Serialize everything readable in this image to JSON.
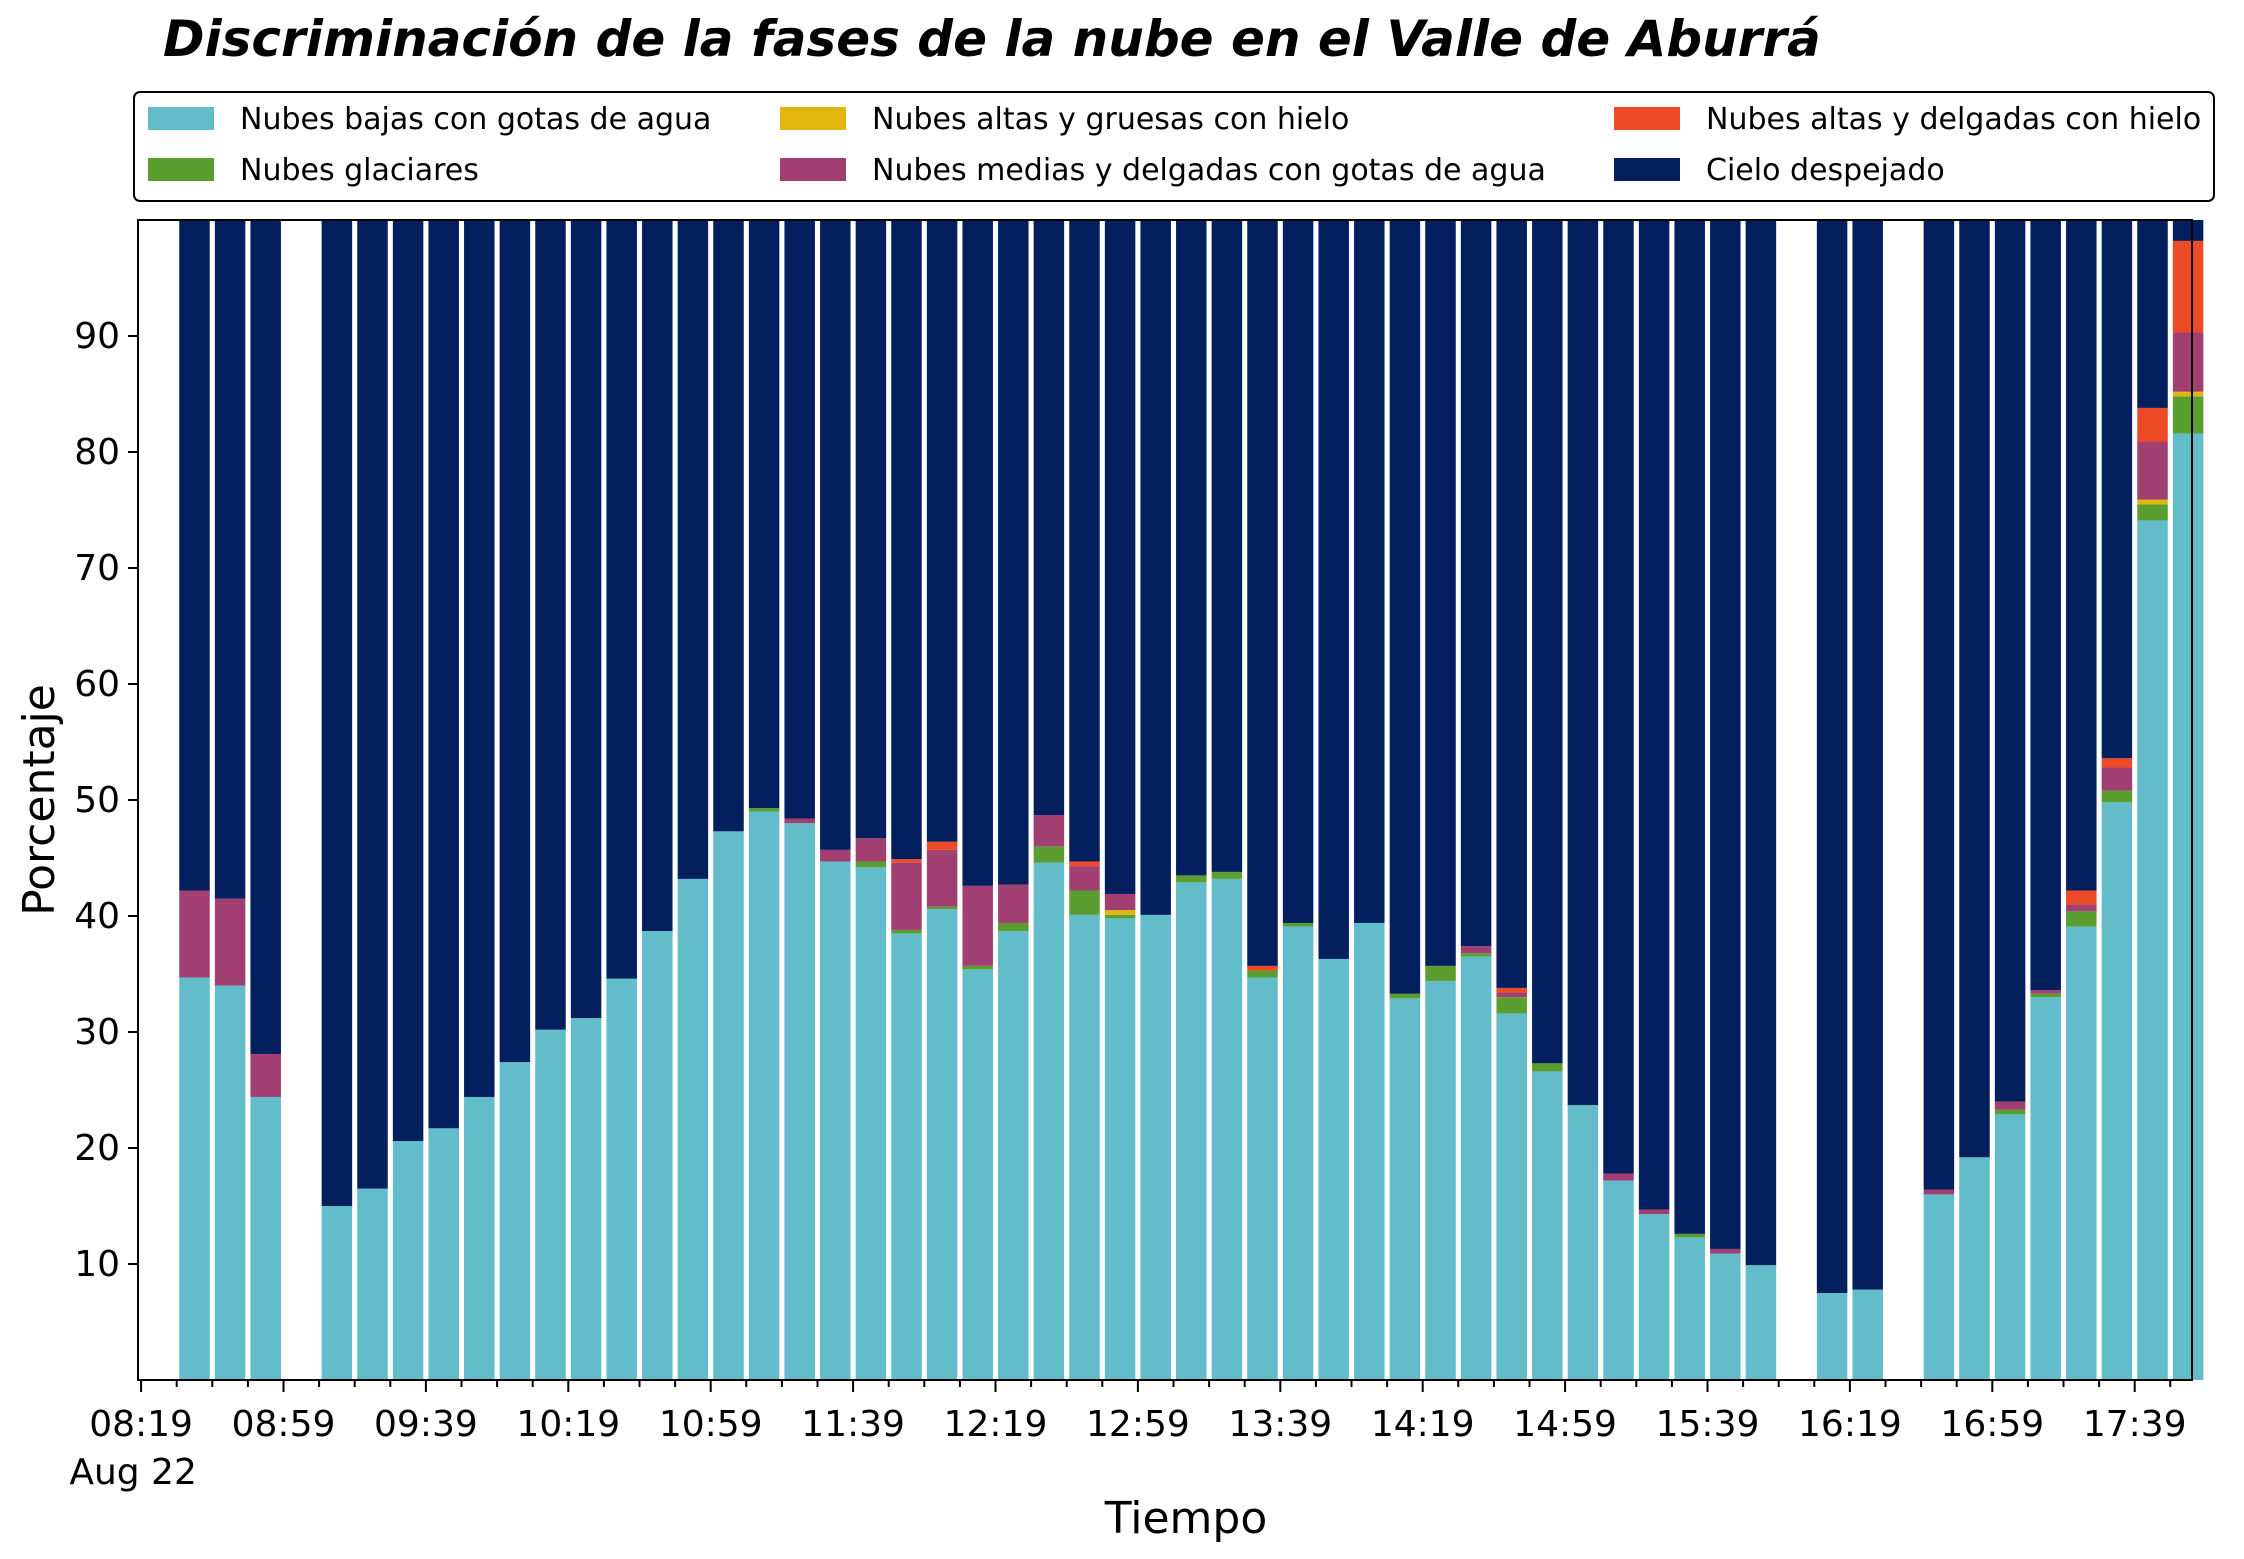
{
  "chart_data": {
    "type": "bar",
    "stacked": true,
    "title": "Discriminación de la fases de la nube en el Valle de Aburrá",
    "xlabel": "Tiempo",
    "ylabel": "Porcentaje",
    "ylim": [
      0,
      100
    ],
    "yticks": [
      10,
      20,
      30,
      40,
      50,
      60,
      70,
      80,
      90
    ],
    "xticks": [
      "08:19",
      "08:59",
      "09:39",
      "10:19",
      "10:59",
      "11:39",
      "12:19",
      "12:59",
      "13:39",
      "14:19",
      "14:59",
      "15:39",
      "16:19",
      "16:59",
      "17:39"
    ],
    "xtick_sublabel": "Aug 22",
    "xticks_every_slots": 4,
    "slot_minutes": 10,
    "start_time": "08:19",
    "grid": false,
    "legend_position": "top",
    "slots": [
      "08:19",
      "08:29",
      "08:39",
      "08:49",
      "08:59",
      "09:09",
      "09:19",
      "09:29",
      "09:39",
      "09:49",
      "09:59",
      "10:09",
      "10:19",
      "10:29",
      "10:39",
      "10:49",
      "10:59",
      "11:09",
      "11:19",
      "11:29",
      "11:39",
      "11:49",
      "11:59",
      "12:09",
      "12:19",
      "12:29",
      "12:39",
      "12:49",
      "12:59",
      "13:09",
      "13:19",
      "13:29",
      "13:39",
      "13:49",
      "13:59",
      "14:09",
      "14:19",
      "14:29",
      "14:39",
      "14:49",
      "14:59",
      "15:09",
      "15:19",
      "15:29",
      "15:39",
      "15:49",
      "15:59",
      "16:09",
      "16:19",
      "16:29",
      "16:39",
      "16:49",
      "16:59",
      "17:09",
      "17:19",
      "17:29",
      "17:39",
      "17:49"
    ],
    "series": [
      {
        "name": "Nubes bajas con gotas de agua",
        "color": "#63bcc9",
        "values": [
          34.7,
          34.0,
          24.4,
          null,
          15.0,
          16.5,
          20.6,
          21.7,
          24.4,
          27.4,
          30.2,
          31.2,
          34.6,
          38.7,
          43.2,
          47.3,
          49.0,
          48.0,
          44.7,
          44.2,
          38.5,
          40.6,
          35.4,
          38.7,
          44.6,
          40.1,
          39.8,
          40.1,
          42.9,
          43.2,
          34.7,
          39.1,
          36.3,
          39.4,
          32.9,
          34.4,
          36.5,
          31.6,
          26.6,
          23.7,
          17.2,
          14.3,
          12.3,
          10.9,
          9.9,
          null,
          7.5,
          7.8,
          null,
          16.0,
          19.2,
          22.9,
          33.0,
          39.1,
          49.8,
          74.1,
          81.6,
          null
        ]
      },
      {
        "name": "Nubes glaciares",
        "color": "#5a9e2f",
        "values": [
          0,
          0,
          0,
          null,
          0,
          0,
          0,
          0,
          0,
          0,
          0,
          0,
          0,
          0,
          0,
          0,
          0.3,
          0,
          0,
          0.5,
          0.3,
          0.2,
          0.3,
          0.7,
          1.4,
          2.1,
          0.3,
          0,
          0.6,
          0.6,
          0.6,
          0.3,
          0,
          0,
          0.4,
          1.3,
          0.3,
          1.4,
          0.7,
          0,
          0,
          0,
          0.3,
          0,
          0,
          null,
          0,
          0,
          null,
          0,
          0,
          0.4,
          0.3,
          1.3,
          1.0,
          1.4,
          3.2,
          null
        ]
      },
      {
        "name": "Nubes altas y gruesas con hielo",
        "color": "#e3b50f",
        "values": [
          0,
          0,
          0,
          null,
          0,
          0,
          0,
          0,
          0,
          0,
          0,
          0,
          0,
          0,
          0,
          0,
          0,
          0,
          0,
          0,
          0,
          0,
          0,
          0,
          0,
          0,
          0.4,
          0,
          0,
          0,
          0,
          0,
          0,
          0,
          0,
          0,
          0,
          0,
          0,
          0,
          0,
          0,
          0,
          0,
          0,
          null,
          0,
          0,
          null,
          0,
          0,
          0,
          0,
          0,
          0,
          0.4,
          0.4,
          null
        ]
      },
      {
        "name": "Nubes medias y delgadas con gotas de agua",
        "color": "#a13f73",
        "values": [
          7.5,
          7.5,
          3.7,
          null,
          0,
          0,
          0,
          0,
          0,
          0,
          0,
          0,
          0,
          0,
          0,
          0,
          0,
          0.4,
          1.0,
          2.0,
          5.8,
          4.9,
          6.9,
          3.3,
          2.7,
          2.1,
          1.4,
          0,
          0,
          0,
          0,
          0,
          0,
          0,
          0,
          0,
          0.6,
          0.4,
          0,
          0,
          0.6,
          0.4,
          0,
          0.4,
          0,
          null,
          0,
          0,
          null,
          0.4,
          0,
          0.7,
          0.3,
          0.6,
          2.0,
          5.0,
          5.1,
          null
        ]
      },
      {
        "name": "Nubes altas y delgadas con hielo",
        "color": "#ed4a28",
        "values": [
          0,
          0,
          0,
          null,
          0,
          0,
          0,
          0,
          0,
          0,
          0,
          0,
          0,
          0,
          0,
          0,
          0,
          0,
          0,
          0,
          0.3,
          0.7,
          0,
          0,
          0,
          0.4,
          0,
          0,
          0,
          0,
          0.4,
          0,
          0,
          0,
          0,
          0,
          0,
          0.4,
          0,
          0,
          0,
          0,
          0,
          0,
          0,
          null,
          0,
          0,
          null,
          0,
          0,
          0,
          0,
          1.2,
          0.8,
          2.9,
          7.9,
          null
        ]
      },
      {
        "name": "Cielo despejado",
        "color": "#031f5e",
        "values": [
          57.8,
          58.5,
          71.9,
          null,
          85.0,
          83.5,
          79.4,
          78.3,
          75.6,
          72.6,
          69.8,
          68.8,
          65.4,
          61.3,
          56.8,
          52.7,
          50.7,
          51.6,
          54.3,
          53.3,
          55.1,
          53.6,
          57.4,
          57.3,
          51.3,
          55.3,
          58.1,
          59.9,
          56.5,
          56.2,
          64.3,
          60.6,
          63.7,
          60.6,
          66.7,
          64.3,
          62.6,
          66.2,
          72.7,
          76.3,
          82.2,
          85.3,
          87.4,
          88.7,
          90.1,
          null,
          92.5,
          92.2,
          null,
          83.6,
          80.8,
          76.0,
          66.4,
          57.8,
          46.4,
          16.2,
          1.8,
          null
        ]
      }
    ]
  }
}
